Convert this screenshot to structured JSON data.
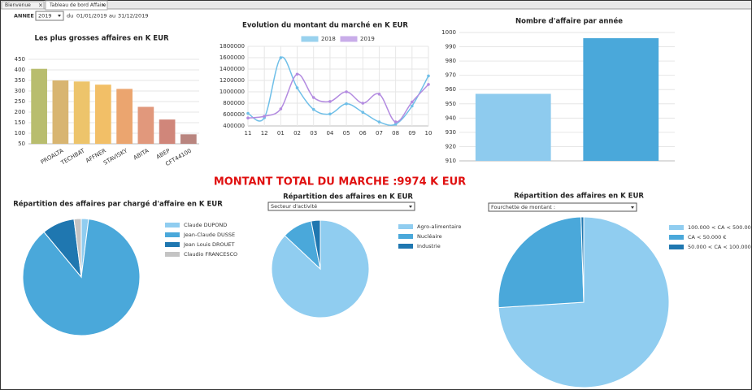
{
  "tabs": [
    "Bienvenue",
    "Tableau de bord Affaire"
  ],
  "filter": {
    "label": "ANNEE :",
    "year": "2019",
    "from_label": "du",
    "from": "01/01/2019",
    "to_label": "au",
    "to": "31/12/2019"
  },
  "total": "MONTANT TOTAL DU MARCHE :9974 K EUR",
  "chart_data": [
    {
      "type": "bar",
      "title": "Les plus grosses affaires en K EUR",
      "categories": [
        null,
        "PROALTA",
        "TECHBAT",
        "AFFNER",
        "STAVISKY",
        "ABITA",
        "ABEP",
        "CFT44100"
      ],
      "values": [
        405,
        350,
        345,
        330,
        310,
        225,
        165,
        95
      ],
      "colors": [
        "#b8bd6e",
        "#d8b571",
        "#edc46b",
        "#f2bf67",
        "#eba56f",
        "#e1987c",
        "#d0867a",
        "#b9857f"
      ],
      "ylim": [
        50,
        450
      ],
      "yticks": [
        50,
        100,
        150,
        200,
        250,
        300,
        350,
        400,
        450
      ],
      "grid": true
    },
    {
      "type": "line",
      "title": "Evolution du montant du marché en K EUR",
      "categories": [
        "11",
        "12",
        "01",
        "02",
        "03",
        "04",
        "05",
        "06",
        "07",
        "08",
        "09",
        "10"
      ],
      "series": [
        {
          "name": "2018",
          "color": "#6fbfe8",
          "values": [
            620000,
            545000,
            1600000,
            1070000,
            690000,
            610000,
            790000,
            640000,
            470000,
            430000,
            750000,
            1280000
          ]
        },
        {
          "name": "2019",
          "color": "#b38be0",
          "values": [
            540000,
            570000,
            700000,
            1310000,
            900000,
            830000,
            1000000,
            800000,
            960000,
            470000,
            820000,
            1130000
          ]
        }
      ],
      "ylim": [
        400000,
        1800000
      ],
      "yticks": [
        400000,
        600000,
        800000,
        1000000,
        1200000,
        1400000,
        1600000,
        1800000
      ],
      "grid": true,
      "legend": "top"
    },
    {
      "type": "bar",
      "title": "Nombre d'affaire par année",
      "categories": [
        null,
        null
      ],
      "values": [
        957,
        996
      ],
      "colors": [
        "#8ecbee",
        "#4aa8da"
      ],
      "ylim": [
        910,
        1000
      ],
      "yticks": [
        910,
        920,
        930,
        940,
        950,
        960,
        970,
        980,
        990,
        1000
      ],
      "grid": true
    },
    {
      "type": "pie",
      "title": "Répartition des affaires par chargé d'affaire en K EUR",
      "categories": [
        "Claude DUPOND",
        "Jean-Claude DUSSE",
        "Jean Louis DROUET",
        "Claudio FRANCESCO"
      ],
      "values": [
        2,
        87,
        9,
        2
      ],
      "colors": [
        "#90cdf0",
        "#4aa8da",
        "#1f77b0",
        "#c4c4c4"
      ],
      "legend": "right"
    },
    {
      "type": "pie",
      "title": "Répartition des affaires en K EUR",
      "filter": "Secteur d'activité",
      "categories": [
        "Agro-alimentaire",
        "Nucléaire",
        "Industrie"
      ],
      "values": [
        87,
        10,
        3
      ],
      "colors": [
        "#90cdf0",
        "#4aa8da",
        "#1f77b0"
      ],
      "legend": "right"
    },
    {
      "type": "pie",
      "title": "Répartition des affaires en K EUR",
      "filter": "Fourchette de montant :",
      "categories": [
        "100.000 < CA < 500.000 €",
        "CA < 50.000 €",
        "50.000 < CA < 100.000 €"
      ],
      "values": [
        74,
        25.5,
        0.5
      ],
      "colors": [
        "#90cdf0",
        "#4aa8da",
        "#1f77b0"
      ],
      "legend": "right"
    }
  ]
}
